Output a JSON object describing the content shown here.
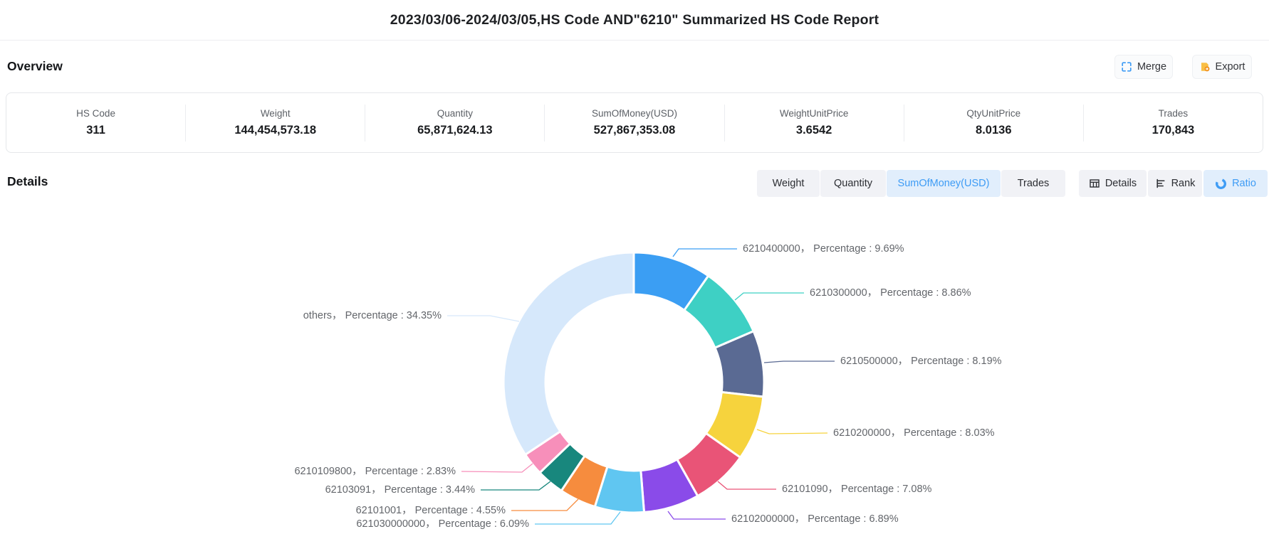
{
  "title": "2023/03/06-2024/03/05,HS Code AND\"6210\" Summarized HS Code Report",
  "overview": {
    "heading": "Overview",
    "merge_label": "Merge",
    "export_label": "Export",
    "stats": [
      {
        "label": "HS Code",
        "value": "311"
      },
      {
        "label": "Weight",
        "value": "144,454,573.18"
      },
      {
        "label": "Quantity",
        "value": "65,871,624.13"
      },
      {
        "label": "SumOfMoney(USD)",
        "value": "527,867,353.08"
      },
      {
        "label": "WeightUnitPrice",
        "value": "3.6542"
      },
      {
        "label": "QtyUnitPrice",
        "value": "8.0136"
      },
      {
        "label": "Trades",
        "value": "170,843"
      }
    ]
  },
  "details": {
    "heading": "Details",
    "tabs": [
      {
        "label": "Weight",
        "active": false
      },
      {
        "label": "Quantity",
        "active": false
      },
      {
        "label": "SumOfMoney(USD)",
        "active": true
      },
      {
        "label": "Trades",
        "active": false
      }
    ],
    "view_buttons": [
      {
        "label": "Details",
        "icon": "table-icon",
        "active": false
      },
      {
        "label": "Rank",
        "icon": "rank-bars-icon",
        "active": false
      },
      {
        "label": "Ratio",
        "icon": "donut-icon",
        "active": true
      }
    ]
  },
  "colors": {
    "accent_blue": "#3e9cf5",
    "active_tab_bg": "#e1eefc",
    "export_orange": "#f9bf45",
    "label_gray": "#63666b"
  },
  "chart_data": {
    "type": "pie",
    "donut": true,
    "title": "",
    "legend_position": "none",
    "value_unit": "percent of SumOfMoney(USD)",
    "series": [
      {
        "name": "6210400000",
        "value": 9.69,
        "color": "#3b9ef3",
        "label": "6210400000， Percentage : 9.69%"
      },
      {
        "name": "6210300000",
        "value": 8.86,
        "color": "#3ed0c4",
        "label": "6210300000， Percentage : 8.86%"
      },
      {
        "name": "6210500000",
        "value": 8.19,
        "color": "#5a6a93",
        "label": "6210500000， Percentage : 8.19%"
      },
      {
        "name": "6210200000",
        "value": 8.03,
        "color": "#f6d33d",
        "label": "6210200000， Percentage : 8.03%"
      },
      {
        "name": "62101090",
        "value": 7.08,
        "color": "#e95477",
        "label": "62101090， Percentage : 7.08%"
      },
      {
        "name": "62102000000",
        "value": 6.89,
        "color": "#8a4be9",
        "label": "62102000000， Percentage : 6.89%"
      },
      {
        "name": "621030000000",
        "value": 6.09,
        "color": "#60c6f1",
        "label": "621030000000， Percentage : 6.09%"
      },
      {
        "name": "62101001",
        "value": 4.55,
        "color": "#f68c3e",
        "label": "62101001， Percentage : 4.55%"
      },
      {
        "name": "62103091",
        "value": 3.44,
        "color": "#18877d",
        "label": "62103091， Percentage : 3.44%"
      },
      {
        "name": "6210109800",
        "value": 2.83,
        "color": "#f78fba",
        "label": "6210109800， Percentage : 2.83%"
      },
      {
        "name": "others",
        "value": 34.35,
        "color": "#d6e8fb",
        "label": "others， Percentage : 34.35%"
      }
    ]
  }
}
